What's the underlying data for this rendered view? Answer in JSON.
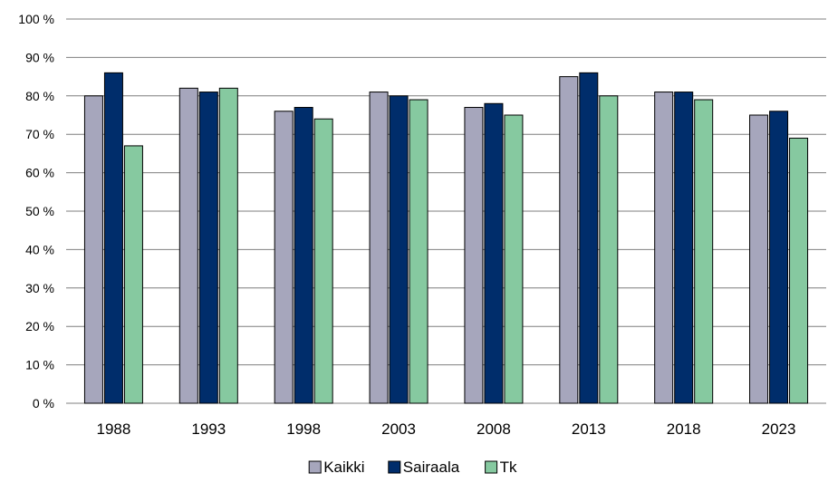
{
  "chart_data": {
    "type": "bar",
    "categories": [
      "1988",
      "1993",
      "1998",
      "2003",
      "2008",
      "2013",
      "2018",
      "2023"
    ],
    "series": [
      {
        "name": "Kaikki",
        "color": "#a6a6bc",
        "values": [
          80,
          82,
          76,
          81,
          77,
          85,
          81,
          75
        ]
      },
      {
        "name": "Sairaala",
        "color": "#002d6b",
        "values": [
          86,
          81,
          77,
          80,
          78,
          86,
          81,
          76
        ]
      },
      {
        "name": "Tk",
        "color": "#86c9a0",
        "values": [
          67,
          82,
          74,
          79,
          75,
          80,
          79,
          69
        ]
      }
    ],
    "ylim": [
      0,
      100
    ],
    "yticks": [
      0,
      10,
      20,
      30,
      40,
      50,
      60,
      70,
      80,
      90,
      100
    ],
    "ytick_labels": [
      "0 %",
      "10 %",
      "20 %",
      "30 %",
      "40 %",
      "50 %",
      "60 %",
      "70 %",
      "80 %",
      "90 %",
      "100 %"
    ],
    "grid": true,
    "legend_position": "bottom-center",
    "title": "",
    "xlabel": "",
    "ylabel": ""
  }
}
